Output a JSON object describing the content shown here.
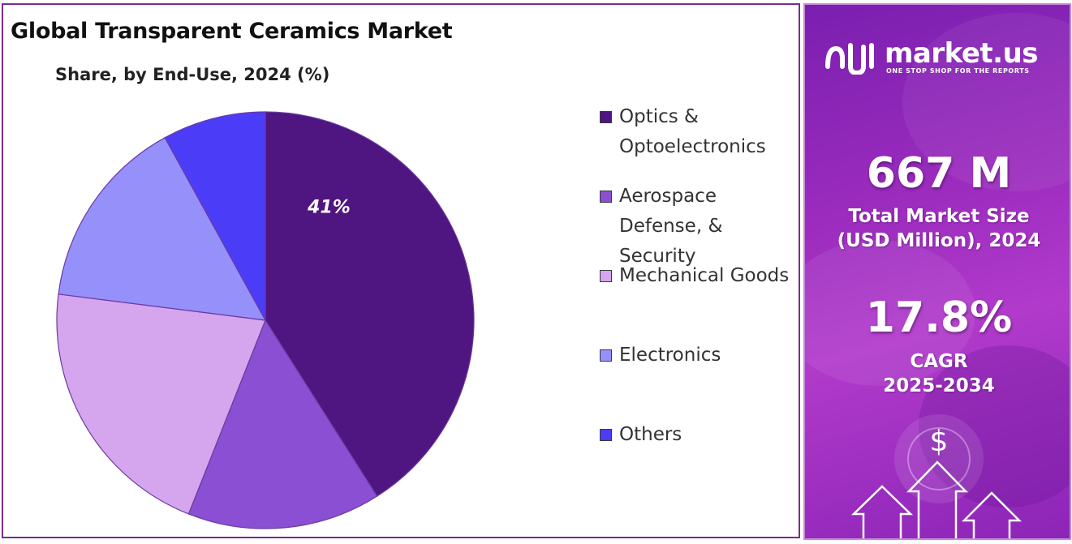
{
  "title": "Global Transparent Ceramics Market",
  "subtitle": "Share, by End-Use, 2024 (%)",
  "chart_data": {
    "type": "pie",
    "title": "Global Transparent Ceramics Market",
    "subtitle": "Share, by End-Use, 2024 (%)",
    "start_angle_deg": 0,
    "direction": "clockwise",
    "slices": [
      {
        "label": "Optics & Optoelectronics",
        "value": 41,
        "color": "#4f1580",
        "data_label": "41%"
      },
      {
        "label": "Aerospace Defense, & Security",
        "value": 15,
        "color": "#8a4fd2",
        "data_label": ""
      },
      {
        "label": "Mechanical Goods",
        "value": 21,
        "color": "#d5a5ee",
        "data_label": ""
      },
      {
        "label": "Electronics",
        "value": 15,
        "color": "#9690fb",
        "data_label": ""
      },
      {
        "label": "Others",
        "value": 8,
        "color": "#4b3df7",
        "data_label": ""
      }
    ],
    "legend_position": "right"
  },
  "legend": {
    "items": [
      {
        "label": "Optics & Optoelectronics",
        "color": "#4f1580"
      },
      {
        "label": "Aerospace Defense, & Security",
        "color": "#8a4fd2"
      },
      {
        "label": "Mechanical Goods",
        "color": "#d5a5ee"
      },
      {
        "label": "Electronics",
        "color": "#9690fb"
      },
      {
        "label": "Others",
        "color": "#4b3df7"
      }
    ]
  },
  "brand": {
    "name": "market.us",
    "tagline": "ONE STOP SHOP FOR THE REPORTS"
  },
  "stats": {
    "market_size_value": "667 M",
    "market_size_label_line1": "Total Market Size",
    "market_size_label_line2": "(USD Million), 2024",
    "cagr_value": "17.8%",
    "cagr_label_line1": "CAGR",
    "cagr_label_line2": "2025-2034"
  },
  "icons": {
    "dollar": "$"
  }
}
